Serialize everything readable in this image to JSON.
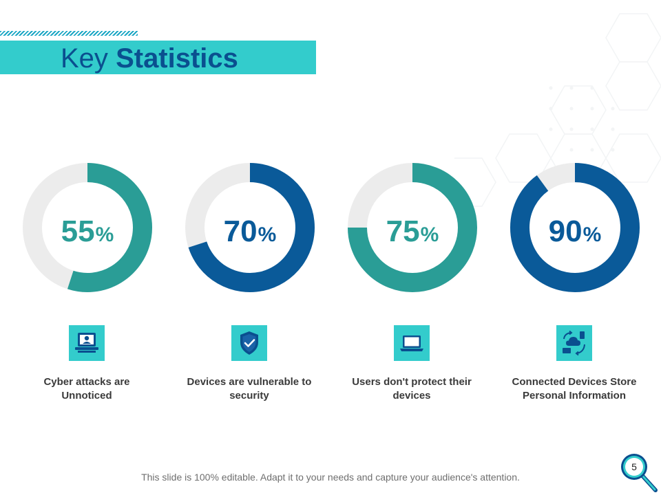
{
  "title": {
    "regular": "Key",
    "bold": "Statistics"
  },
  "colors": {
    "title_bar": "#33cccc",
    "title_text": "#0a4f8f",
    "teal": "#2a9d96",
    "navy": "#0a5a99",
    "track": "#ececec",
    "icon_bg": "#33cccc"
  },
  "chart_data": {
    "type": "donut",
    "title": "Key Statistics",
    "unit": "%",
    "items": [
      {
        "value": 55,
        "value_label": "55",
        "caption_line1": "Cyber attacks are",
        "caption_line2": "Unnoticed",
        "icon": "hacker-laptop-icon",
        "color": "#2a9d96",
        "start_angle": 0
      },
      {
        "value": 70,
        "value_label": "70",
        "caption_line1": "Devices are vulnerable to",
        "caption_line2": "security",
        "icon": "shield-check-icon",
        "color": "#0a5a99",
        "start_angle": 0
      },
      {
        "value": 75,
        "value_label": "75",
        "caption_line1": "Users don't protect their",
        "caption_line2": "devices",
        "icon": "laptop-icon",
        "color": "#2a9d96",
        "start_angle": 0
      },
      {
        "value": 90,
        "value_label": "90",
        "caption_line1": "Connected Devices Store",
        "caption_line2": "Personal Information",
        "icon": "cloud-devices-sync-icon",
        "color": "#0a5a99",
        "start_angle": 0
      }
    ]
  },
  "footer": "This slide is 100% editable. Adapt it to your needs and capture your audience's attention.",
  "page_number": "5"
}
